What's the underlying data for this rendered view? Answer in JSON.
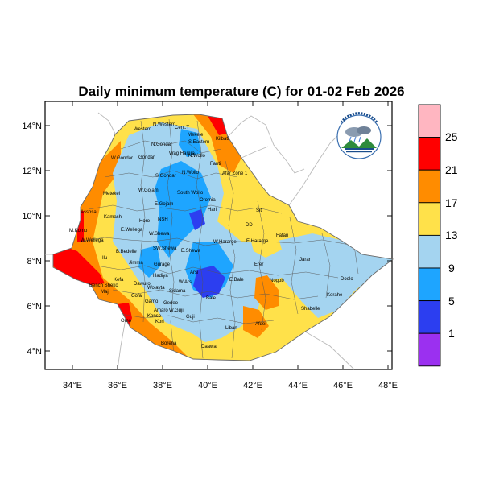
{
  "title": "Daily minimum temperature (C) for 01-02 Feb 2026",
  "axes": {
    "x_ticks": [
      "34°E",
      "36°E",
      "38°E",
      "40°E",
      "42°E",
      "44°E",
      "46°E",
      "48°E"
    ],
    "y_ticks": [
      "14°N",
      "12°N",
      "10°N",
      "8°N",
      "6°N",
      "4°N"
    ]
  },
  "colorbar": {
    "labels": [
      "25",
      "21",
      "17",
      "13",
      "9",
      "5",
      "1"
    ],
    "colors": [
      "#ffb6c1",
      "#ff0000",
      "#ff8c00",
      "#ffe14a",
      "#a4d4f0",
      "#1ea5ff",
      "#2c3ef0",
      "#9b30f0"
    ]
  },
  "regions": [
    "N.Western",
    "Cent.T",
    "Mekele",
    "S.Eastern",
    "Kilbati",
    "Western",
    "N.Gondar",
    "Wag Hamra",
    "W.Gondar",
    "Gondar",
    "N.Wollo",
    "Afar Zone 1",
    "Fanti",
    "S.Gondar",
    "N.Wollo",
    "Metekel",
    "W.Gojam",
    "South Wollo",
    "E.Gojam",
    "Oromia",
    "Hari",
    "Kamashi",
    "Horo",
    "NSH",
    "Siti",
    "Assosa",
    "W.Wellega",
    "E.Wellega",
    "W.Shewa",
    "DD",
    "M.Komo",
    "W.Hararge",
    "E.Hararge",
    "Fafan",
    "B.Bedelle",
    "Jimma",
    "SW.Shewa",
    "E.Shewa",
    "Jarar",
    "Erer",
    "Ilu",
    "Kefa",
    "Gurage",
    "Hadiya",
    "Arsi",
    "W.Arsi",
    "E.Bale",
    "Nogob",
    "Doolo",
    "Bench Sheko",
    "Dawuro",
    "Wolayta",
    "Sidama",
    "Bale",
    "Korahe",
    "Maji",
    "Gofa",
    "Gamo",
    "Gedeo",
    "Shabelle",
    "Omo",
    "Amaro",
    "W.Guji",
    "Liban",
    "Afder",
    "Konso",
    "Kori",
    "Guji",
    "Borena",
    "Daawa"
  ]
}
